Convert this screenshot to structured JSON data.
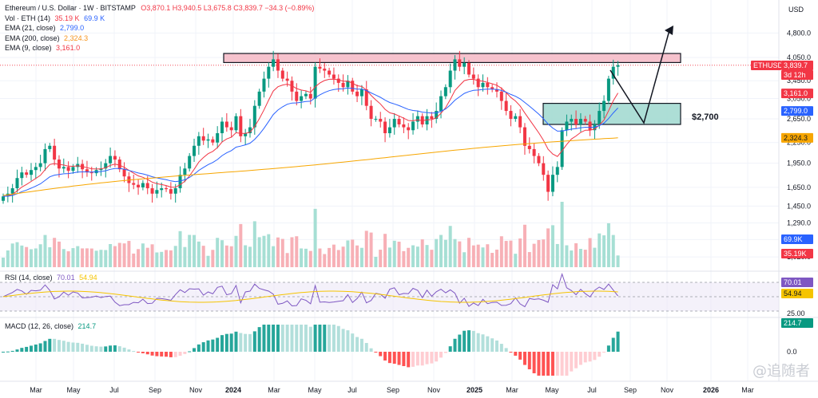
{
  "header": {
    "title": "Ethereum / U.S. Dollar · 1W · BITSTAMP",
    "ohlc": "O3,870.1 H3,940.5 L3,675.8 C3,839.7 −34.3 (−0.89%)",
    "vol_label": "Vol · ETH (14)",
    "vol_a": "35.19 K",
    "vol_b": "69.9 K",
    "ema21_label": "EMA (21, close)",
    "ema21_val": "2,799.0",
    "ema200_label": "EMA (200, close)",
    "ema200_val": "2,324.3",
    "ema9_label": "EMA (9, close)",
    "ema9_val": "3,161.0",
    "currency": "USD"
  },
  "rsi": {
    "label": "RSI (14, close)",
    "val": "70.01",
    "ma": "54.94",
    "levels": [
      "70.01",
      "54.94",
      "25.00"
    ]
  },
  "macd": {
    "label": "MACD (12, 26, close)",
    "val": "214.7",
    "levels": [
      "214.7",
      "0.0"
    ]
  },
  "price_tags": {
    "symbol": "ETHUSD",
    "last": "3,839.7",
    "countdown": "3d 12h",
    "ema9": "3,161.0",
    "ema21": "2,799.0",
    "ema200": "2,324.3",
    "vol_b": "69.9K",
    "vol_a": "35.19K"
  },
  "annotation": {
    "target_label": "$2,700"
  },
  "watermark": "@追随者",
  "colors": {
    "up": "#089981",
    "down": "#f23645",
    "ema9": "#f23645",
    "ema21": "#2962ff",
    "ema200": "#f7a600",
    "resistance": "#f5b7c4",
    "support": "#9fd8cf",
    "rsi": "#7e57c2",
    "rsi_ma": "#f5c400"
  },
  "chart_data": {
    "type": "candlestick",
    "symbol": "ETHUSD",
    "interval": "1W",
    "price_axis": {
      "ticks": [
        "4,800.0",
        "4,050.0",
        "3,450.0",
        "3,050.0",
        "2,650.0",
        "2,250.0",
        "1,950.0",
        "1,650.0",
        "1,450.0",
        "1,290.0",
        "1,150.0",
        "1,020.0"
      ],
      "scale": "log"
    },
    "time_axis": [
      "Mar",
      "May",
      "Jul",
      "Sep",
      "Nov",
      "2024",
      "Mar",
      "May",
      "Jul",
      "Sep",
      "Nov",
      "2025",
      "Mar",
      "May",
      "Jul",
      "Sep",
      "Nov",
      "2026",
      "Mar"
    ],
    "resistance_zone": [
      4000,
      4120
    ],
    "support_zone": [
      2550,
      2950
    ],
    "closes": [
      1550,
      1580,
      1640,
      1760,
      1830,
      1800,
      1860,
      1900,
      1950,
      2150,
      2200,
      2000,
      1880,
      1900,
      1850,
      1900,
      1940,
      1870,
      1830,
      1820,
      1860,
      1880,
      1950,
      2050,
      2000,
      1870,
      1780,
      1700,
      1680,
      1650,
      1700,
      1640,
      1580,
      1620,
      1640,
      1630,
      1580,
      1640,
      1800,
      1880,
      2050,
      2200,
      2350,
      2280,
      2300,
      2250,
      2400,
      2600,
      2500,
      2450,
      2700,
      2350,
      2400,
      2500,
      2900,
      3200,
      3500,
      3800,
      4000,
      3700,
      3500,
      3450,
      3200,
      3000,
      3100,
      3150,
      3050,
      3800,
      3750,
      3700,
      3600,
      3500,
      3400,
      3300,
      3450,
      3200,
      3100,
      3250,
      2900,
      2650,
      2650,
      2600,
      2400,
      2500,
      2650,
      2550,
      2500,
      2450,
      2600,
      2700,
      2550,
      2700,
      2650,
      2800,
      3100,
      3300,
      3700,
      4000,
      3800,
      3900,
      3600,
      3500,
      3300,
      3400,
      3300,
      3250,
      3200,
      3000,
      2800,
      2650,
      2700,
      2500,
      2200,
      2150,
      2050,
      1950,
      1800,
      1600,
      1800,
      1900,
      2450,
      2600,
      2650,
      2550,
      2650,
      2600,
      2450,
      2550,
      2800,
      3000,
      3500,
      3800,
      3839.7
    ],
    "rsi_value": 70.01,
    "rsi_ma_value": 54.94,
    "macd_value": 214.7
  }
}
